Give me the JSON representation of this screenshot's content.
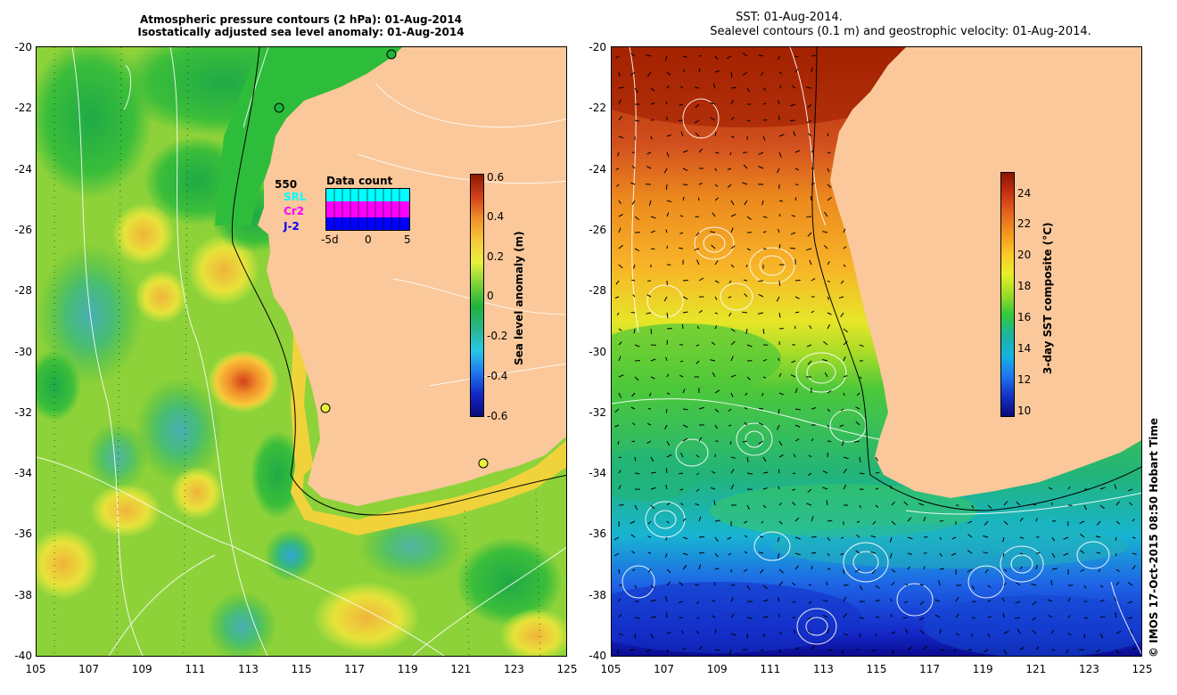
{
  "left_panel": {
    "title_line1": "Atmospheric pressure contours (2 hPa): 01-Aug-2014",
    "title_line2": "Isostatically adjusted sea level anomaly: 01-Aug-2014",
    "colorbar": {
      "title": "Sea level anomaly (m)",
      "ticks": [
        "0.6",
        "0.4",
        "0.2",
        "0",
        "-0.2",
        "-0.4",
        "-0.6"
      ],
      "stops": [
        "#8b1a00",
        "#d2401a",
        "#f0902a",
        "#f8c83a",
        "#e8f03a",
        "#7ad23a",
        "#1eb43a",
        "#2ab48c",
        "#28c8e6",
        "#1e78f0",
        "#1428c8",
        "#0a0a78"
      ]
    },
    "inset": {
      "title": "Data count",
      "count": "550",
      "satellites": [
        "SRL",
        "Cr2",
        "J-2"
      ],
      "satellite_colors": [
        "#00ffff",
        "#ff00ff",
        "#0000ff"
      ],
      "axis": [
        "-5d",
        "0",
        "5"
      ]
    }
  },
  "right_panel": {
    "title_line1": "SST: 01-Aug-2014.",
    "title_line2": "Sealevel contours (0.1 m) and geostrophic velocity: 01-Aug-2014.",
    "colorbar": {
      "title": "3-day SST composite (°C)",
      "ticks": [
        "24",
        "22",
        "20",
        "18",
        "16",
        "14",
        "12",
        "10"
      ],
      "stops": [
        "#8b1400",
        "#c83214",
        "#e6641e",
        "#f5961e",
        "#fac828",
        "#e6f028",
        "#a0dc28",
        "#32c83c",
        "#1eb4a0",
        "#14b4dc",
        "#1e78f0",
        "#1432c8",
        "#0a0a78"
      ]
    }
  },
  "axes": {
    "lat_ticks": [
      "-20",
      "-22",
      "-24",
      "-26",
      "-28",
      "-30",
      "-32",
      "-34",
      "-36",
      "-38",
      "-40"
    ],
    "lon_ticks": [
      "105",
      "107",
      "109",
      "111",
      "113",
      "115",
      "117",
      "119",
      "121",
      "123",
      "125"
    ]
  },
  "credit": "© IMOS 17-Oct-2015 08:50 Hobart Time",
  "colors": {
    "land": "#fac89a",
    "ocean_green": "#2ebd3a",
    "white_contour": "#ffffff"
  }
}
